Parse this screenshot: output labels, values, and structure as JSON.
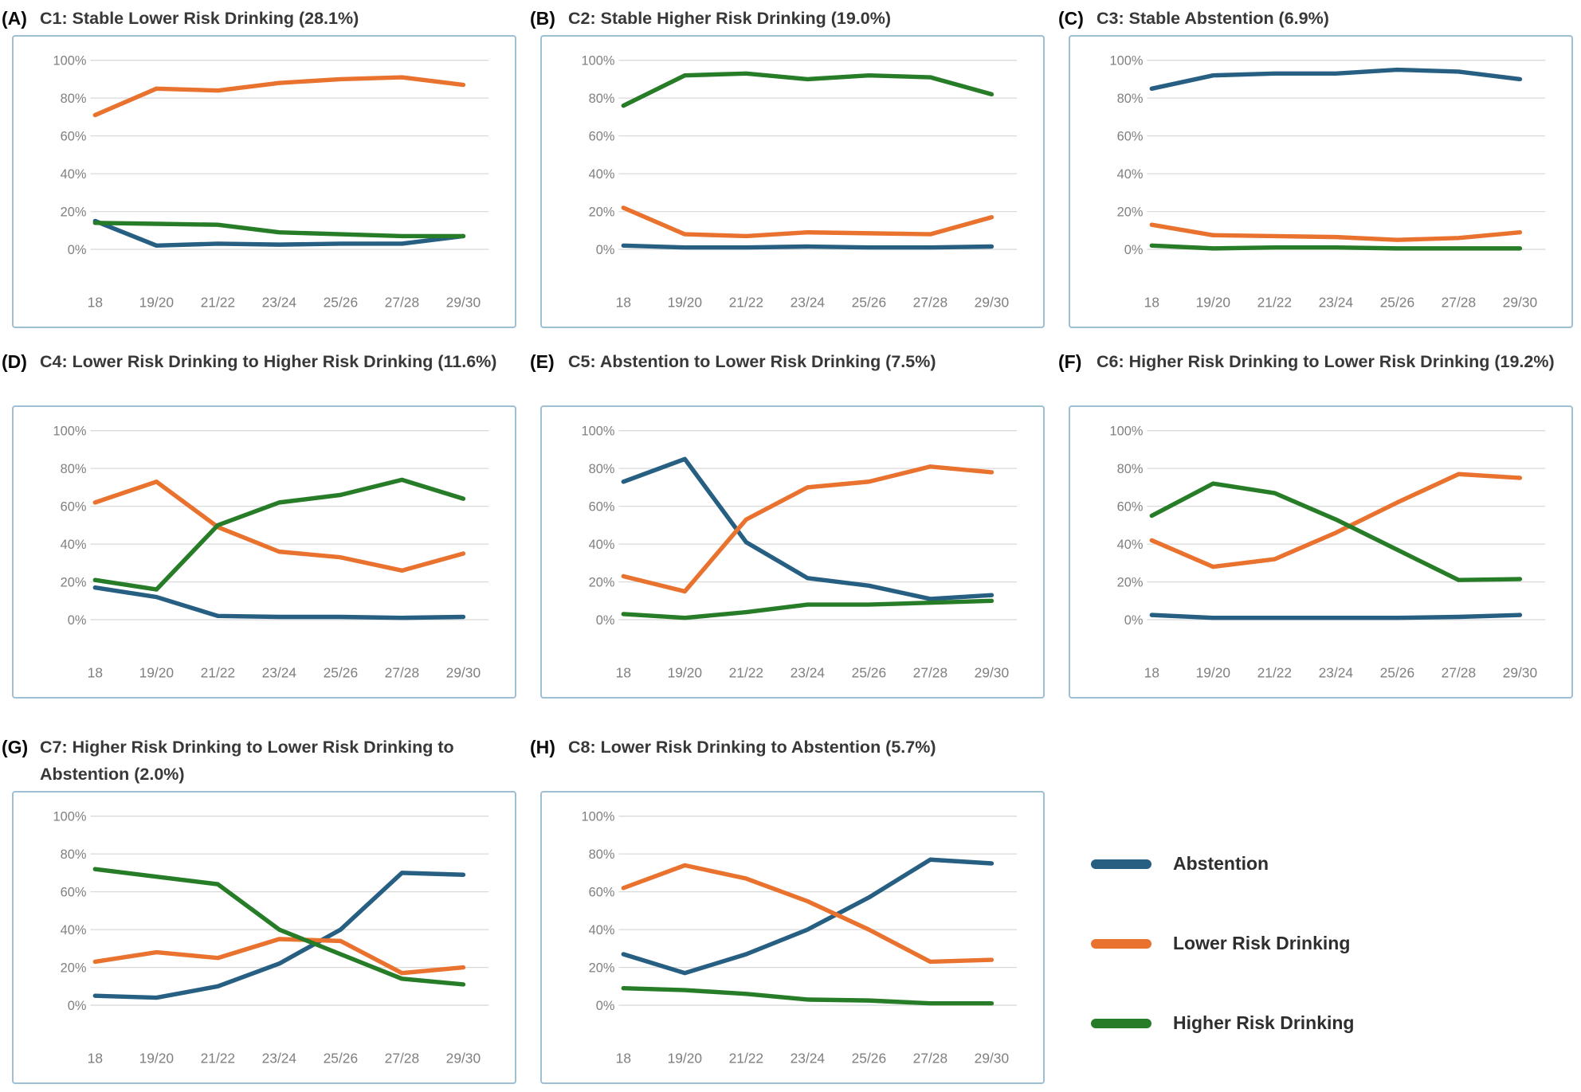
{
  "figure": {
    "x_categories": [
      "18",
      "19/20",
      "21/22",
      "23/24",
      "25/26",
      "27/28",
      "29/30"
    ],
    "y_ticks": [
      "100%",
      "80%",
      "60%",
      "40%",
      "20%",
      "0%"
    ],
    "ylim": [
      0,
      100
    ],
    "grid": true,
    "legend_position": "bottom-right",
    "series_colors": {
      "Abstention": "#275F82",
      "Lower Risk Drinking": "#E9722E",
      "Higher Risk Drinking": "#277C27"
    },
    "box_border_color": "#9FBFD4",
    "legend": [
      {
        "label": "Abstention"
      },
      {
        "label": "Lower Risk Drinking"
      },
      {
        "label": "Higher Risk Drinking"
      }
    ]
  },
  "chart_data": [
    {
      "type": "line",
      "panel_letter": "(A)",
      "title": "C1: Stable Lower Risk Drinking (28.1%)",
      "categories": [
        "18",
        "19/20",
        "21/22",
        "23/24",
        "25/26",
        "27/28",
        "29/30"
      ],
      "ylim": [
        0,
        100
      ],
      "series": [
        {
          "name": "Abstention",
          "values": [
            15,
            2,
            3,
            2.5,
            3,
            3,
            7
          ]
        },
        {
          "name": "Lower Risk Drinking",
          "values": [
            71,
            85,
            84,
            88,
            90,
            91,
            87
          ]
        },
        {
          "name": "Higher Risk Drinking",
          "values": [
            14,
            13.5,
            13,
            9,
            8,
            7,
            7
          ]
        }
      ]
    },
    {
      "type": "line",
      "panel_letter": "(B)",
      "title": "C2: Stable Higher Risk Drinking (19.0%)",
      "categories": [
        "18",
        "19/20",
        "21/22",
        "23/24",
        "25/26",
        "27/28",
        "29/30"
      ],
      "ylim": [
        0,
        100
      ],
      "series": [
        {
          "name": "Abstention",
          "values": [
            2,
            1,
            1,
            1.5,
            1,
            1,
            1.5
          ]
        },
        {
          "name": "Lower Risk Drinking",
          "values": [
            22,
            8,
            7,
            9,
            8.5,
            8,
            17
          ]
        },
        {
          "name": "Higher Risk Drinking",
          "values": [
            76,
            92,
            93,
            90,
            92,
            91,
            82
          ]
        }
      ]
    },
    {
      "type": "line",
      "panel_letter": "(C)",
      "title": "C3: Stable Abstention (6.9%)",
      "categories": [
        "18",
        "19/20",
        "21/22",
        "23/24",
        "25/26",
        "27/28",
        "29/30"
      ],
      "ylim": [
        0,
        100
      ],
      "series": [
        {
          "name": "Abstention",
          "values": [
            85,
            92,
            93,
            93,
            95,
            94,
            90
          ]
        },
        {
          "name": "Lower Risk Drinking",
          "values": [
            13,
            7.5,
            7,
            6.5,
            5,
            6,
            9
          ]
        },
        {
          "name": "Higher Risk Drinking",
          "values": [
            2,
            0.5,
            1,
            1,
            0.5,
            0.5,
            0.5
          ]
        }
      ]
    },
    {
      "type": "line",
      "panel_letter": "(D)",
      "title": "C4: Lower Risk Drinking to Higher Risk Drinking (11.6%)",
      "categories": [
        "18",
        "19/20",
        "21/22",
        "23/24",
        "25/26",
        "27/28",
        "29/30"
      ],
      "ylim": [
        0,
        100
      ],
      "series": [
        {
          "name": "Abstention",
          "values": [
            17,
            12,
            2,
            1.5,
            1.5,
            1,
            1.5
          ]
        },
        {
          "name": "Lower Risk Drinking",
          "values": [
            62,
            73,
            49,
            36,
            33,
            26,
            35
          ]
        },
        {
          "name": "Higher Risk Drinking",
          "values": [
            21,
            16,
            50,
            62,
            66,
            74,
            64
          ]
        }
      ]
    },
    {
      "type": "line",
      "panel_letter": "(E)",
      "title": "C5: Abstention to Lower Risk Drinking (7.5%)",
      "categories": [
        "18",
        "19/20",
        "21/22",
        "23/24",
        "25/26",
        "27/28",
        "29/30"
      ],
      "ylim": [
        0,
        100
      ],
      "series": [
        {
          "name": "Abstention",
          "values": [
            73,
            85,
            41,
            22,
            18,
            11,
            13
          ]
        },
        {
          "name": "Lower Risk Drinking",
          "values": [
            23,
            15,
            53,
            70,
            73,
            81,
            78
          ]
        },
        {
          "name": "Higher Risk Drinking",
          "values": [
            3,
            1,
            4,
            8,
            8,
            9,
            10
          ]
        }
      ]
    },
    {
      "type": "line",
      "panel_letter": "(F)",
      "title": "C6: Higher Risk Drinking to Lower Risk Drinking (19.2%)",
      "categories": [
        "18",
        "19/20",
        "21/22",
        "23/24",
        "25/26",
        "27/28",
        "29/30"
      ],
      "ylim": [
        0,
        100
      ],
      "series": [
        {
          "name": "Abstention",
          "values": [
            2.5,
            1,
            1,
            1,
            1,
            1.5,
            2.5
          ]
        },
        {
          "name": "Lower Risk Drinking",
          "values": [
            42,
            28,
            32,
            46,
            62,
            77,
            75
          ]
        },
        {
          "name": "Higher Risk Drinking",
          "values": [
            55,
            72,
            67,
            53,
            37,
            21,
            21.5
          ]
        }
      ]
    },
    {
      "type": "line",
      "panel_letter": "(G)",
      "title": "C7: Higher Risk Drinking to Lower Risk Drinking to Abstention (2.0%)",
      "categories": [
        "18",
        "19/20",
        "21/22",
        "23/24",
        "25/26",
        "27/28",
        "29/30"
      ],
      "ylim": [
        0,
        100
      ],
      "series": [
        {
          "name": "Abstention",
          "values": [
            5,
            4,
            10,
            22,
            40,
            70,
            69
          ]
        },
        {
          "name": "Lower Risk Drinking",
          "values": [
            23,
            28,
            25,
            35,
            34,
            17,
            20
          ]
        },
        {
          "name": "Higher Risk Drinking",
          "values": [
            72,
            68,
            64,
            40,
            27,
            14,
            11
          ]
        }
      ]
    },
    {
      "type": "line",
      "panel_letter": "(H)",
      "title": "C8: Lower Risk Drinking to Abstention (5.7%)",
      "categories": [
        "18",
        "19/20",
        "21/22",
        "23/24",
        "25/26",
        "27/28",
        "29/30"
      ],
      "ylim": [
        0,
        100
      ],
      "series": [
        {
          "name": "Abstention",
          "values": [
            27,
            17,
            27,
            40,
            57,
            77,
            75
          ]
        },
        {
          "name": "Lower Risk Drinking",
          "values": [
            62,
            74,
            67,
            55,
            40,
            23,
            24
          ]
        },
        {
          "name": "Higher Risk Drinking",
          "values": [
            9,
            8,
            6,
            3,
            2.5,
            1,
            1
          ]
        }
      ]
    }
  ]
}
